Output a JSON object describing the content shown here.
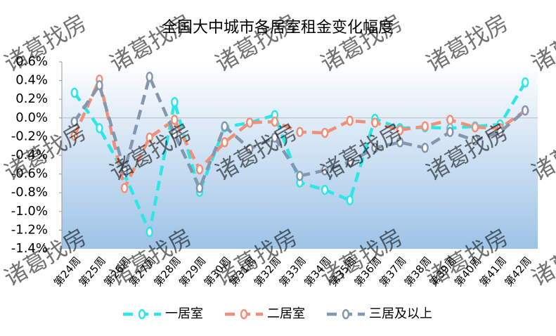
{
  "chart_data": {
    "type": "line",
    "title": "全国大中城市各居室租金变化幅度",
    "watermark": "诸葛找房",
    "categories": [
      "第24周",
      "第25周",
      "第26周",
      "第27周",
      "第28周",
      "第29周",
      "第30周",
      "第31周",
      "第32周",
      "第33周",
      "第34周",
      "第35周",
      "第36周",
      "第37周",
      "第38周",
      "第39周",
      "第40周",
      "第41周",
      "第42周"
    ],
    "series": [
      {
        "name": "一居室",
        "color": "#2ee6e6",
        "values": [
          0.27,
          -0.11,
          -0.6,
          -1.22,
          0.17,
          -0.79,
          -0.1,
          -0.05,
          0.03,
          -0.69,
          -0.77,
          -0.88,
          -0.01,
          -0.11,
          -0.1,
          -0.11,
          -0.09,
          -0.07,
          0.38
        ]
      },
      {
        "name": "二居室",
        "color": "#f0907a",
        "values": [
          -0.19,
          0.41,
          -0.75,
          -0.21,
          -0.02,
          -0.55,
          -0.26,
          -0.05,
          -0.04,
          -0.15,
          -0.16,
          -0.03,
          -0.05,
          -0.13,
          -0.09,
          -0.02,
          -0.1,
          -0.11,
          0.08
        ]
      },
      {
        "name": "三居及以上",
        "color": "#8497b0",
        "values": [
          -0.04,
          0.35,
          -0.56,
          0.44,
          -0.17,
          -0.75,
          -0.09,
          -0.33,
          -0.21,
          -0.62,
          -0.56,
          -0.47,
          -0.32,
          -0.26,
          -0.32,
          -0.15,
          -0.24,
          -0.15,
          0.08
        ]
      }
    ],
    "ylim": [
      -1.4,
      0.6
    ],
    "yticks": [
      {
        "value": -1.4,
        "label": "-1.4%"
      },
      {
        "value": -1.2,
        "label": "-1.2%"
      },
      {
        "value": -1.0,
        "label": "-1.0%"
      },
      {
        "value": -0.8,
        "label": "-0.8%"
      },
      {
        "value": -0.6,
        "label": "-0.6%"
      },
      {
        "value": -0.4,
        "label": "-0.4%"
      },
      {
        "value": -0.2,
        "label": "-0.2%"
      },
      {
        "value": 0.0,
        "label": "0.0%"
      },
      {
        "value": 0.2,
        "label": "0.2%"
      },
      {
        "value": 0.4,
        "label": "0.4%"
      },
      {
        "value": 0.6,
        "label": "0.6%"
      }
    ]
  }
}
